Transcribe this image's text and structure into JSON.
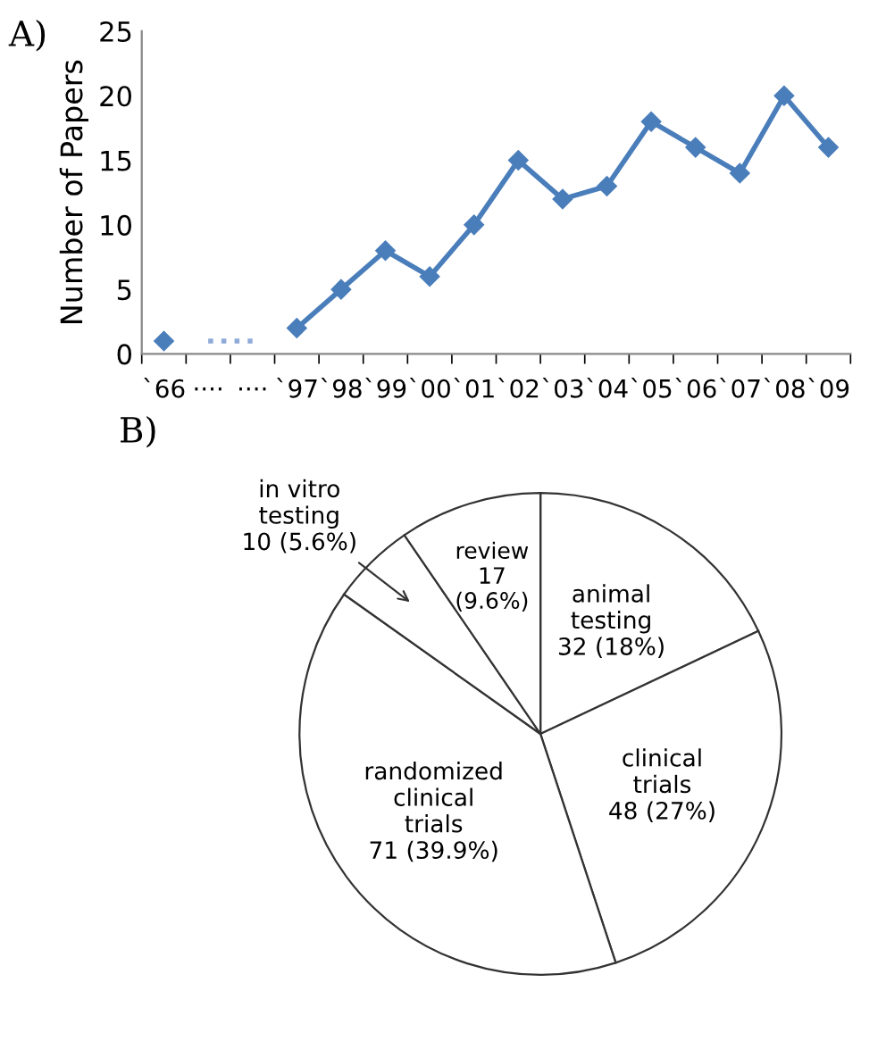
{
  "chart_data": [
    {
      "type": "line",
      "title": "A)",
      "ylabel": "Number of Papers",
      "categories": [
        "`66",
        "····",
        "····",
        "`97",
        "`98",
        "`99",
        "`00",
        "`01",
        "`02",
        "`03",
        "`04",
        "`05",
        "`06",
        "`07",
        "`08",
        "`09"
      ],
      "series": [
        {
          "color": "#4a7ebb",
          "values": [
            1,
            null,
            null,
            2,
            5,
            8,
            6,
            10,
            15,
            12,
            13,
            18,
            16,
            14,
            20,
            16
          ],
          "marker": "diamond",
          "line_style": "solid"
        },
        {
          "color": "#8eaad8",
          "values": [
            null,
            1,
            1,
            null,
            null,
            null,
            null,
            null,
            null,
            null,
            null,
            null,
            null,
            null,
            null,
            null
          ],
          "marker": "none",
          "line_style": "dotted"
        }
      ],
      "ylim": [
        0,
        25
      ],
      "yticks": [
        0,
        5,
        10,
        15,
        20,
        25
      ],
      "grid": false,
      "legend": false
    },
    {
      "type": "pie",
      "title": "B)",
      "categories": [
        "animal\ntesting",
        "clinical\ntrials",
        "randomized\nclinical\ntrials",
        "in vitro\ntesting",
        "review"
      ],
      "values": [
        32,
        48,
        71,
        10,
        17
      ],
      "value_labels": [
        "32 (18%)",
        "48 (27%)",
        "71 (39.9%)",
        "10 (5.6%)",
        "17\n(9.6%)"
      ],
      "colors": [
        "#ffffff",
        "#ffffff",
        "#ffffff",
        "#ffffff",
        "#ffffff"
      ],
      "legend": false
    }
  ]
}
